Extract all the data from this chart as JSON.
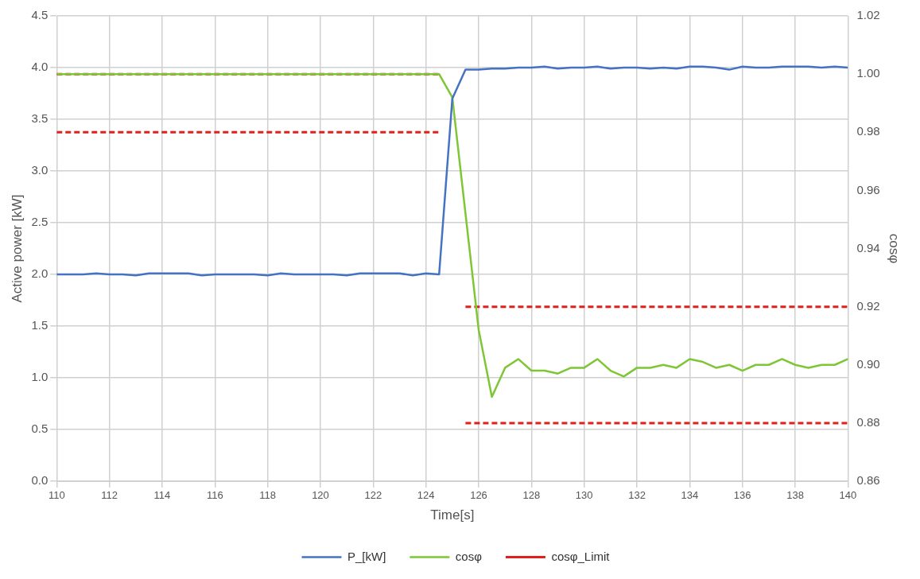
{
  "chart_data": {
    "type": "line",
    "xlabel": "Time[s]",
    "ylabel": "Active power [kW]",
    "y2label": "cosφ",
    "x": [
      110,
      110.5,
      111,
      111.5,
      112,
      112.5,
      113,
      113.5,
      114,
      114.5,
      115,
      115.5,
      116,
      116.5,
      117,
      117.5,
      118,
      118.5,
      119,
      119.5,
      120,
      120.5,
      121,
      121.5,
      122,
      122.5,
      123,
      123.5,
      124,
      124.5,
      125,
      125.5,
      126,
      126.5,
      127,
      127.5,
      128,
      128.5,
      129,
      129.5,
      130,
      130.5,
      131,
      131.5,
      132,
      132.5,
      133,
      133.5,
      134,
      134.5,
      135,
      135.5,
      136,
      136.5,
      137,
      137.5,
      138,
      138.5,
      139,
      139.5,
      140
    ],
    "series": [
      {
        "name": "P_[kW]",
        "color": "#4472c4",
        "values": [
          2.0,
          2.0,
          2.0,
          2.01,
          2.0,
          2.0,
          1.99,
          2.01,
          2.01,
          2.01,
          2.01,
          1.99,
          2.0,
          2.0,
          2.0,
          2.0,
          1.99,
          2.01,
          2.0,
          2.0,
          2.0,
          2.0,
          1.99,
          2.01,
          2.01,
          2.01,
          2.01,
          1.99,
          2.01,
          2.0,
          3.7,
          3.98,
          3.98,
          3.99,
          3.99,
          4.0,
          4.0,
          4.01,
          3.99,
          4.0,
          4.0,
          4.01,
          3.99,
          4.0,
          4.0,
          3.99,
          4.0,
          3.99,
          4.01,
          4.01,
          4.0,
          3.98,
          4.01,
          4.0,
          4.0,
          4.01,
          4.01,
          4.01,
          4.0,
          4.01,
          4.0
        ]
      },
      {
        "name": "cosφ",
        "color": "#7ec636",
        "axis": "y2",
        "values": [
          1.0,
          1.0,
          1.0,
          1.0,
          1.0,
          1.0,
          1.0,
          1.0,
          1.0,
          1.0,
          1.0,
          1.0,
          1.0,
          1.0,
          1.0,
          1.0,
          1.0,
          1.0,
          1.0,
          1.0,
          1.0,
          1.0,
          1.0,
          1.0,
          1.0,
          1.0,
          1.0,
          1.0,
          1.0,
          1.0,
          0.992,
          0.952,
          0.912,
          0.889,
          0.899,
          0.902,
          0.898,
          0.898,
          0.897,
          0.899,
          0.899,
          0.902,
          0.898,
          0.896,
          0.899,
          0.899,
          0.9,
          0.899,
          0.902,
          0.901,
          0.899,
          0.9,
          0.898,
          0.9,
          0.9,
          0.902,
          0.9,
          0.899,
          0.9,
          0.9,
          0.902
        ]
      },
      {
        "name": "cosφ_Limit",
        "color": "#e0201b",
        "axis": "y2",
        "line_style": "dashed",
        "x": [
          110,
          124.5,
          125,
          125.5,
          140
        ],
        "values": [
          1.0,
          1.0,
          null,
          0.92,
          0.92
        ]
      },
      {
        "color": "#e0201b",
        "axis": "y2",
        "line_style": "dashed",
        "x": [
          110,
          124.5,
          125,
          125.5,
          140
        ],
        "values": [
          0.98,
          0.98,
          null,
          0.88,
          0.88
        ]
      }
    ],
    "xlim": [
      110,
      140
    ],
    "xticks": [
      110,
      112,
      114,
      116,
      118,
      120,
      122,
      124,
      126,
      128,
      130,
      132,
      134,
      136,
      138,
      140
    ],
    "ylim": [
      0,
      4.5
    ],
    "yticks": [
      {
        "value": 0,
        "label": "0.0"
      },
      {
        "value": 0.5,
        "label": "0.5"
      },
      {
        "value": 1,
        "label": "1.0"
      },
      {
        "value": 1.5,
        "label": "1.5"
      },
      {
        "value": 2,
        "label": "2.0"
      },
      {
        "value": 2.5,
        "label": "2.5"
      },
      {
        "value": 3,
        "label": "3.0"
      },
      {
        "value": 3.5,
        "label": "3.5"
      },
      {
        "value": 4,
        "label": "4.0"
      },
      {
        "value": 4.5,
        "label": "4.5"
      }
    ],
    "y2lim": [
      0.86,
      1.02
    ],
    "y2ticks": [
      0.86,
      0.88,
      {
        "value": 0.9,
        "label": "0.90"
      },
      0.92,
      0.94,
      0.96,
      0.98,
      {
        "value": 1,
        "label": "1.00"
      },
      1.02
    ],
    "grid": true,
    "legend": "bottom",
    "marker": "none",
    "line_style": "solid"
  }
}
